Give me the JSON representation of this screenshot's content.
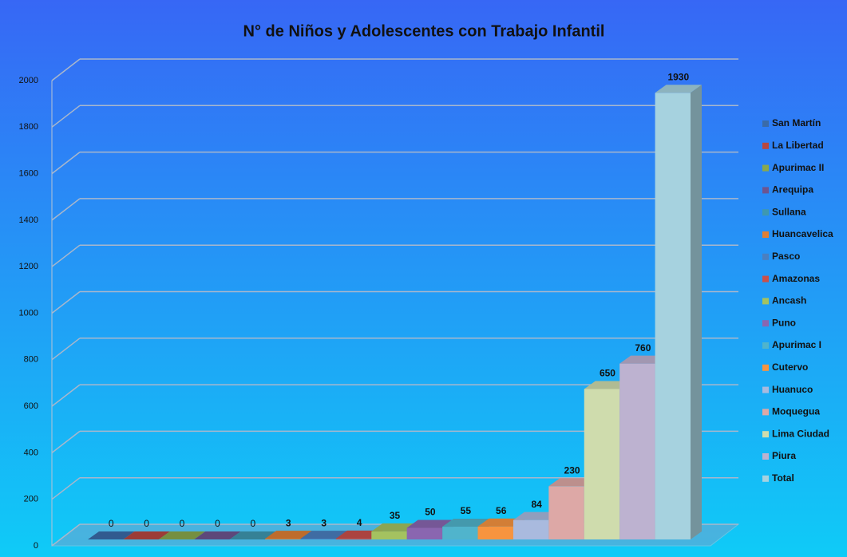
{
  "chart_data": {
    "type": "bar3d",
    "title": "N° de Niños y Adolescentes con Trabajo Infantil",
    "categories": [
      "San Martín",
      "La Libertad",
      "Apurimac II",
      "Arequipa",
      "Sullana",
      "Huancavelica",
      "Pasco",
      "Amazonas",
      "Ancash",
      "Puno",
      "Apurimac I",
      "Cutervo",
      "Huanuco",
      "Moquegua",
      "Lima Ciudad",
      "Piura",
      "Total"
    ],
    "values": [
      0,
      0,
      0,
      0,
      0,
      3,
      3,
      4,
      35,
      50,
      55,
      56,
      84,
      230,
      650,
      760,
      1930
    ],
    "colors": [
      "#3a6ba8",
      "#b8473f",
      "#8aa84c",
      "#6d5590",
      "#3e98b0",
      "#e07f34",
      "#4a7fc0",
      "#c9504b",
      "#a4c260",
      "#8a66b0",
      "#50b4cc",
      "#f7943f",
      "#a9bade",
      "#dda8a6",
      "#cfdcad",
      "#bdb2d0",
      "#a6d2df"
    ],
    "ylim": [
      0,
      2000
    ],
    "yticks": [
      0,
      200,
      400,
      600,
      800,
      1000,
      1200,
      1400,
      1600,
      1800,
      2000
    ],
    "grid": true,
    "legend": "right"
  }
}
